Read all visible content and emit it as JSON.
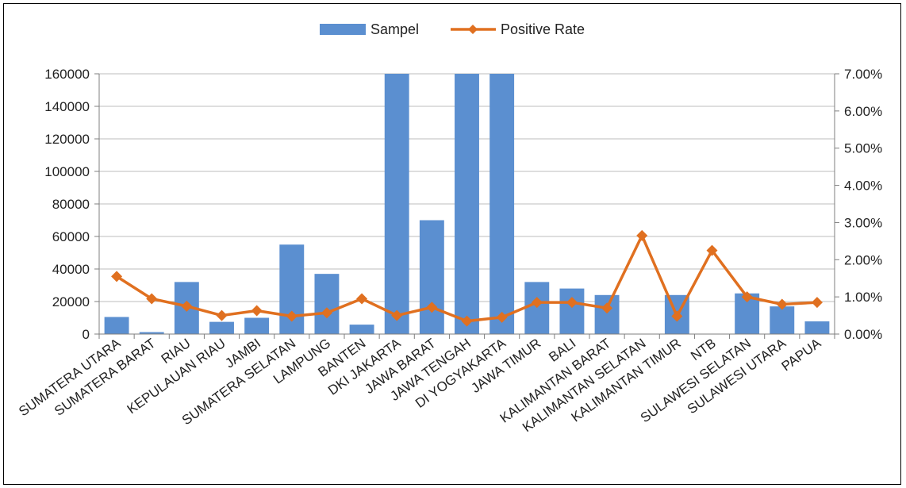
{
  "chart_data": {
    "type": "bar",
    "categories": [
      "SUMATERA UTARA",
      "SUMATERA BARAT",
      "RIAU",
      "KEPULAUAN RIAU",
      "JAMBI",
      "SUMATERA SELATAN",
      "LAMPUNG",
      "BANTEN",
      "DKI JAKARTA",
      "JAWA BARAT",
      "JAWA TENGAH",
      "DI YOGYAKARTA",
      "JAWA TIMUR",
      "BALI",
      "KALIMANTAN BARAT",
      "KALIMANTAN SELATAN",
      "KALIMANTAN TIMUR",
      "NTB",
      "SULAWESI SELATAN",
      "SULAWESI UTARA",
      "PAPUA"
    ],
    "series": [
      {
        "name": "Sampel",
        "type": "bar",
        "axis": "left",
        "color": "#5B8FD0",
        "values": [
          10500,
          1200,
          32000,
          7500,
          10000,
          55000,
          37000,
          5800,
          160000,
          70000,
          160000,
          160000,
          32000,
          28000,
          24000,
          0,
          24000,
          0,
          25000,
          17000,
          7800
        ]
      },
      {
        "name": "Positive Rate",
        "type": "line",
        "axis": "right",
        "color": "#E07020",
        "marker": "diamond",
        "values": [
          0.0155,
          0.0095,
          0.0075,
          0.005,
          0.0063,
          0.0048,
          0.0057,
          0.0095,
          0.005,
          0.0072,
          0.0035,
          0.0045,
          0.0085,
          0.0085,
          0.007,
          0.0265,
          0.0048,
          0.0225,
          0.01,
          0.008,
          0.0085
        ]
      }
    ],
    "y_left": {
      "min": 0,
      "max": 160000,
      "ticks": [
        "0",
        "20000",
        "40000",
        "60000",
        "80000",
        "100000",
        "120000",
        "140000",
        "160000"
      ]
    },
    "y_right": {
      "min": 0,
      "max": 0.07,
      "ticks": [
        "0.00%",
        "1.00%",
        "2.00%",
        "3.00%",
        "4.00%",
        "5.00%",
        "6.00%",
        "7.00%"
      ]
    },
    "grid": true,
    "legend": {
      "position": "top-center",
      "entries": [
        "Sampel",
        "Positive Rate"
      ]
    }
  }
}
